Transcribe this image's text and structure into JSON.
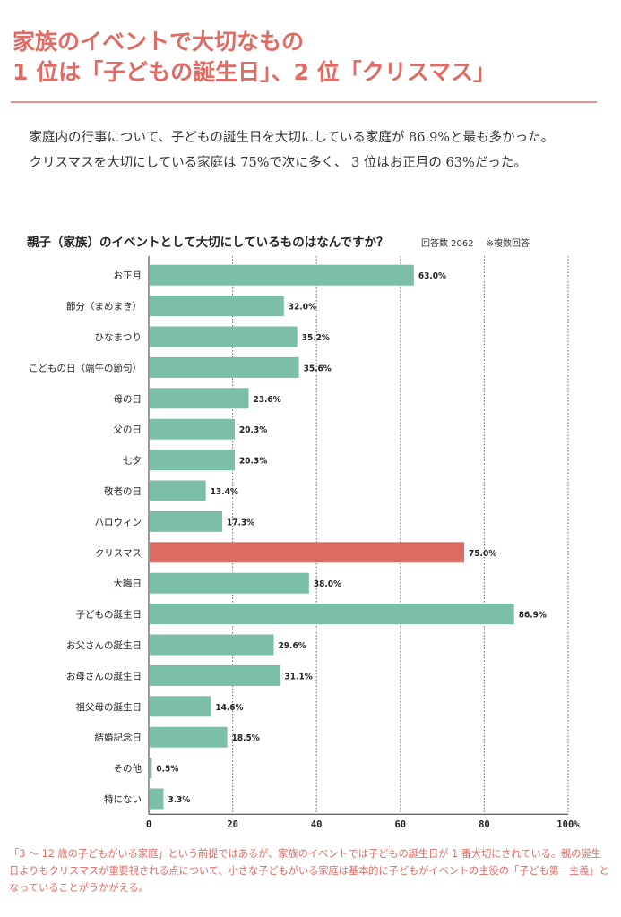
{
  "headline": {
    "line1": "家族のイベントで大切なもの",
    "line2": "1 位は「子どもの誕生日」、2 位「クリスマス」"
  },
  "lead": {
    "p1": "家庭内の行事について、子どもの誕生日を大切にしている家庭が 86.9%と最も多かった。",
    "p2": "クリスマスを大切にしている家庭は 75%で次に多く、 3 位はお正月の 63%だった。"
  },
  "chart_note": {
    "respondents": "回答数 2062",
    "multiple": "※複数回答"
  },
  "chart_data": {
    "type": "bar",
    "orientation": "horizontal",
    "title": "親子（家族）のイベントとして大切にしているものはなんですか？",
    "categories": [
      "お正月",
      "節分（まめまき）",
      "ひなまつり",
      "こどもの日（端午の節句）",
      "母の日",
      "父の日",
      "七夕",
      "敬老の日",
      "ハロウィン",
      "クリスマス",
      "大晦日",
      "子どもの誕生日",
      "お父さんの誕生日",
      "お母さんの誕生日",
      "祖父母の誕生日",
      "結婚記念日",
      "その他",
      "特にない"
    ],
    "values": [
      63.0,
      32.0,
      35.2,
      35.6,
      23.6,
      20.3,
      20.3,
      13.4,
      17.3,
      75.0,
      38.0,
      86.9,
      29.6,
      31.1,
      14.6,
      18.5,
      0.5,
      3.3
    ],
    "value_labels": [
      "63.0%",
      "32.0%",
      "35.2%",
      "35.6%",
      "23.6%",
      "20.3%",
      "20.3%",
      "13.4%",
      "17.3%",
      "75.0%",
      "38.0%",
      "86.9%",
      "29.6%",
      "31.1%",
      "14.6%",
      "18.5%",
      "0.5%",
      "3.3%"
    ],
    "highlight_index": 9,
    "xlim": [
      0,
      100
    ],
    "xticks": [
      "0",
      "20",
      "40",
      "60",
      "80",
      "100%"
    ],
    "grid": true,
    "colors": {
      "bar": "#7bbfa8",
      "highlight": "#dd6b63",
      "grid": "#666666"
    }
  },
  "footnote": "「3 ～ 12 歳の子どもがいる家庭」という前提ではあるが、家族のイベントでは子どもの誕生日が 1 番大切にされている。親の誕生日よりもクリスマスが重要視される点について、小さな子どもがいる家庭は基本的に子どもがイベントの主役の「子ども第一主義」となっていることがうかがえる。"
}
